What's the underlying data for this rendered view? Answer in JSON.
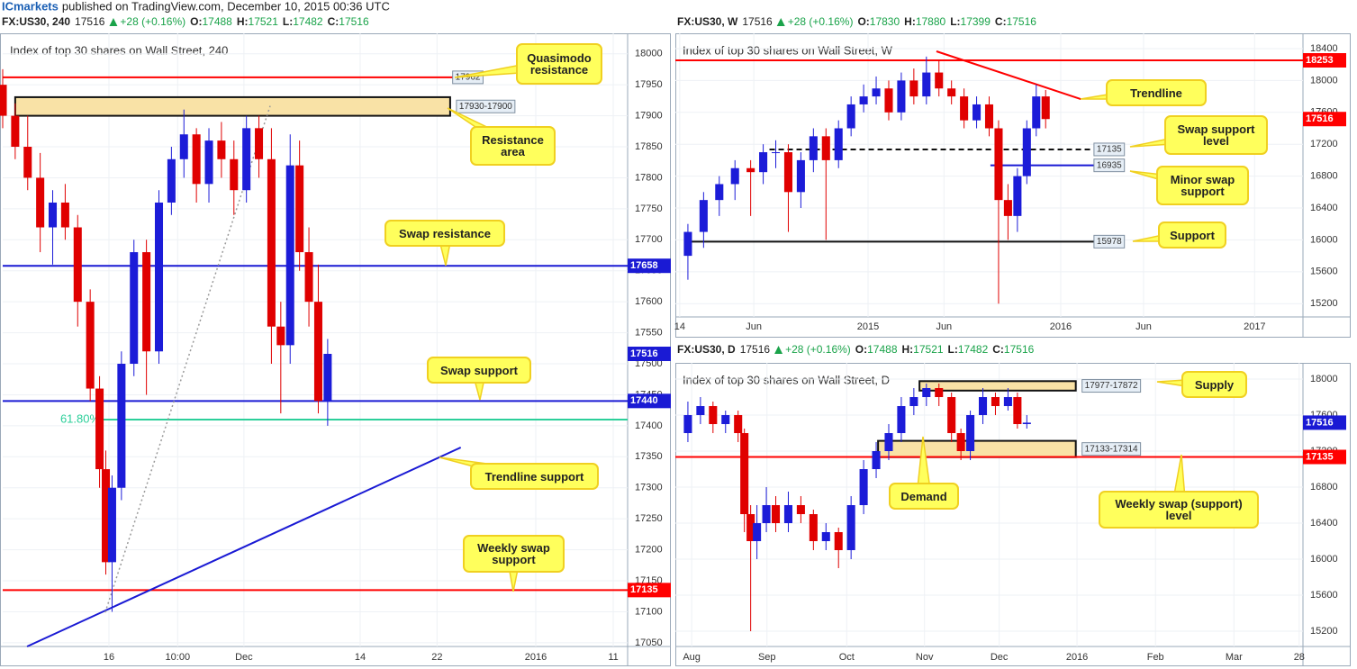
{
  "header": {
    "brand": "ICmarkets",
    "text": "published on TradingView.com, December 10, 2015 00:36 UTC"
  },
  "chart_data": [
    {
      "type": "candlestick",
      "title": "Index of top 30 shares on Wall Street, 240",
      "info": {
        "symbol": "FX:US30, 240",
        "price": 17516,
        "change": "+28 (+0.16%)",
        "labels": [
          "O:",
          "H:",
          "L:",
          "C:"
        ],
        "values": [
          17488,
          17521,
          17482,
          17516
        ]
      },
      "up_color": "#1c1cd8",
      "down_color": "#e00000",
      "grid": true,
      "xlim": [
        0,
        100
      ],
      "ylim": [
        17044,
        18033
      ],
      "yticks": [
        17050,
        17100,
        17150,
        17200,
        17250,
        17300,
        17350,
        17400,
        17450,
        17500,
        17550,
        17600,
        17650,
        17700,
        17750,
        17800,
        17850,
        17900,
        17950,
        18000
      ],
      "xticks": [
        {
          "value": 17,
          "label": "16"
        },
        {
          "value": 28,
          "label": "10:00"
        },
        {
          "value": 38.6,
          "label": "Dec"
        },
        {
          "value": 57.2,
          "label": "14"
        },
        {
          "value": 69.5,
          "label": "22"
        },
        {
          "value": 85.3,
          "label": "2016"
        },
        {
          "value": 97.7,
          "label": "11"
        }
      ],
      "x": [
        0,
        2,
        4,
        6,
        8,
        10,
        12,
        14,
        15.5,
        16.5,
        17.5,
        19,
        21,
        23,
        25,
        27,
        29,
        31,
        33,
        35,
        37,
        39,
        41,
        43,
        44.5,
        46,
        47.5,
        49,
        50.5,
        52
      ],
      "open": [
        17950,
        17900,
        17850,
        17800,
        17720,
        17760,
        17720,
        17600,
        17460,
        17330,
        17180,
        17300,
        17500,
        17680,
        17520,
        17760,
        17830,
        17870,
        17790,
        17860,
        17830,
        17780,
        17880,
        17830,
        17560,
        17530,
        17820,
        17680,
        17600,
        17440
      ],
      "high": [
        17975,
        17920,
        17900,
        17840,
        17780,
        17790,
        17740,
        17620,
        17480,
        17360,
        17320,
        17520,
        17700,
        17700,
        17780,
        17850,
        17910,
        17880,
        17880,
        17890,
        17860,
        17900,
        17900,
        17880,
        17600,
        17870,
        17860,
        17720,
        17660,
        17540
      ],
      "low": [
        17880,
        17830,
        17780,
        17680,
        17660,
        17700,
        17560,
        17440,
        17300,
        17160,
        17100,
        17280,
        17480,
        17450,
        17500,
        17740,
        17800,
        17760,
        17760,
        17800,
        17740,
        17760,
        17800,
        17500,
        17420,
        17500,
        17650,
        17560,
        17420,
        17400
      ],
      "close": [
        17900,
        17850,
        17800,
        17720,
        17760,
        17720,
        17600,
        17460,
        17330,
        17180,
        17300,
        17500,
        17680,
        17520,
        17760,
        17830,
        17870,
        17790,
        17860,
        17830,
        17780,
        17880,
        17830,
        17560,
        17530,
        17820,
        17680,
        17600,
        17440,
        17516
      ],
      "zones": [
        {
          "from": 17930,
          "to": 17900,
          "label": "17930-17900",
          "x": [
            2,
            71.6
          ]
        }
      ],
      "levels": [
        {
          "value": 17962,
          "color": "#ff0000",
          "line_style": "solid",
          "x": [
            0,
            72
          ],
          "tag": "line"
        },
        {
          "value": 17658,
          "color": "#1a1ad4",
          "line_style": "solid",
          "x": [
            0,
            100
          ],
          "tag": "axis"
        },
        {
          "value": 17440,
          "color": "#1a1ad4",
          "line_style": "solid",
          "x": [
            0,
            100
          ],
          "tag": "axis"
        },
        {
          "value": 17410,
          "label": "61.80%",
          "color": "#2ccf9a",
          "line_style": "solid",
          "x": [
            16,
            100
          ],
          "tag": "start"
        },
        {
          "value": 17135,
          "color": "#ff0000",
          "line_style": "solid",
          "x": [
            0,
            100
          ],
          "tag": "axis"
        },
        {
          "value": 17516,
          "color": "#1a1ad4",
          "line_style": "none",
          "x": [
            0,
            100
          ],
          "tag": "axis"
        }
      ],
      "trendlines": [
        {
          "x": [
            3.9,
            73.3
          ],
          "y": [
            17044,
            17365
          ],
          "color": "#1a1ad4",
          "line_style": "solid"
        },
        {
          "x": [
            16.4,
            42.8
          ],
          "y": [
            17099,
            17916
          ],
          "color": "#999999",
          "line_style": "dotted"
        }
      ],
      "annotations": [
        "Quasimodo resistance",
        "Resistance area",
        "Swap resistance",
        "Swap support",
        "Trendline support",
        "Weekly swap support"
      ]
    },
    {
      "type": "candlestick",
      "title": "Index of top 30 shares on Wall Street, W",
      "info": {
        "symbol": "FX:US30, W",
        "price": 17516,
        "change": "+28 (+0.16%)",
        "labels": [
          "O:",
          "H:",
          "L:",
          "C:"
        ],
        "values": [
          17830,
          17880,
          17399,
          17516
        ]
      },
      "up_color": "#1c1cd8",
      "down_color": "#e00000",
      "grid": true,
      "xlim": [
        0,
        100
      ],
      "ylim": [
        15033,
        18592
      ],
      "yticks": [
        15200,
        15600,
        16000,
        16400,
        16800,
        17200,
        17600,
        18000,
        18400
      ],
      "xticks": [
        {
          "value": 0.7,
          "label": "14"
        },
        {
          "value": 12.5,
          "label": "Jun"
        },
        {
          "value": 30.7,
          "label": "2015"
        },
        {
          "value": 42.8,
          "label": "Jun"
        },
        {
          "value": 61.4,
          "label": "2016"
        },
        {
          "value": 74.6,
          "label": "Jun"
        },
        {
          "value": 92.3,
          "label": "2017"
        }
      ],
      "x": [
        2,
        4.5,
        7,
        9.5,
        12,
        14,
        16,
        18,
        20,
        22,
        24,
        26,
        28,
        30,
        32,
        34,
        36,
        38,
        40,
        42,
        44,
        46,
        48,
        50,
        51.5,
        53,
        54.5,
        56,
        57.5,
        59
      ],
      "open": [
        15800,
        16100,
        16500,
        16700,
        16900,
        16850,
        17100,
        17100,
        16600,
        17000,
        17300,
        17000,
        17400,
        17700,
        17800,
        17900,
        17600,
        18000,
        17800,
        18100,
        17900,
        17800,
        17500,
        17700,
        17400,
        16500,
        16300,
        16800,
        17400,
        17800
      ],
      "high": [
        16200,
        16600,
        16800,
        17000,
        17000,
        17200,
        17250,
        17200,
        17100,
        17400,
        17400,
        17500,
        17800,
        17950,
        18050,
        18000,
        18100,
        18150,
        18300,
        18250,
        18000,
        17900,
        17800,
        17800,
        17500,
        16700,
        16900,
        17500,
        17950,
        17880
      ],
      "low": [
        15500,
        15900,
        16300,
        16500,
        16300,
        16700,
        16900,
        16100,
        16400,
        16850,
        16000,
        16900,
        17300,
        17600,
        17700,
        17500,
        17500,
        17700,
        17700,
        17800,
        17700,
        17400,
        17400,
        17300,
        15200,
        16000,
        16100,
        16700,
        17300,
        17399
      ],
      "close": [
        16100,
        16500,
        16700,
        16900,
        16850,
        17100,
        17100,
        16600,
        17000,
        17300,
        17000,
        17400,
        17700,
        17800,
        17900,
        17600,
        18000,
        17800,
        18100,
        17900,
        17800,
        17500,
        17700,
        17400,
        16500,
        16300,
        16800,
        17400,
        17800,
        17516
      ],
      "zones": [],
      "levels": [
        {
          "value": 18253,
          "color": "#ff0000",
          "line_style": "solid",
          "x": [
            0,
            100
          ],
          "tag": "axis"
        },
        {
          "value": 17135,
          "color": "#111111",
          "line_style": "dashed",
          "x": [
            15,
            66.7
          ],
          "tag": "line"
        },
        {
          "value": 16935,
          "color": "#1a1ad4",
          "line_style": "solid",
          "x": [
            50.2,
            66.7
          ],
          "tag": "line"
        },
        {
          "value": 15978,
          "color": "#111111",
          "line_style": "solid",
          "x": [
            2.1,
            66.7
          ],
          "tag": "line"
        },
        {
          "value": 17516,
          "color": "#ff0000",
          "line_style": "none",
          "x": [
            0,
            100
          ],
          "tag": "axis"
        }
      ],
      "trendlines": [
        {
          "x": [
            41.6,
            64.6
          ],
          "y": [
            18366,
            17767
          ],
          "color": "#ff0000",
          "line_style": "solid"
        }
      ],
      "annotations": [
        "Trendline",
        "Swap support level",
        "Minor swap support",
        "Support"
      ]
    },
    {
      "type": "candlestick",
      "title": "Index of top 30 shares on Wall Street, D",
      "info": {
        "symbol": "FX:US30, D",
        "price": 17516,
        "change": "+28 (+0.16%)",
        "labels": [
          "O:",
          "H:",
          "L:",
          "C:"
        ],
        "values": [
          17488,
          17521,
          17482,
          17516
        ]
      },
      "up_color": "#1c1cd8",
      "down_color": "#e00000",
      "grid": true,
      "xlim": [
        0,
        100
      ],
      "ylim": [
        15030,
        18180
      ],
      "yticks": [
        15200,
        15600,
        16000,
        16400,
        16800,
        17200,
        17600,
        18000
      ],
      "xticks": [
        {
          "value": 2.6,
          "label": "Aug"
        },
        {
          "value": 14.6,
          "label": "Sep"
        },
        {
          "value": 27.3,
          "label": "Oct"
        },
        {
          "value": 39.7,
          "label": "Nov"
        },
        {
          "value": 51.6,
          "label": "Dec"
        },
        {
          "value": 64,
          "label": "2016"
        },
        {
          "value": 76.5,
          "label": "Feb"
        },
        {
          "value": 89,
          "label": "Mar"
        },
        {
          "value": 99.4,
          "label": "28"
        }
      ],
      "x": [
        2,
        4,
        6,
        8,
        10,
        11,
        12,
        13,
        14.5,
        16,
        18,
        20,
        22,
        24,
        26,
        28,
        30,
        32,
        34,
        36,
        38,
        40,
        42,
        44,
        45.5,
        47,
        49,
        51,
        53,
        54.5,
        56
      ],
      "open": [
        17400,
        17600,
        17700,
        17500,
        17600,
        17400,
        16500,
        16200,
        16400,
        16600,
        16400,
        16600,
        16500,
        16200,
        16300,
        16100,
        16600,
        17000,
        17200,
        17400,
        17700,
        17800,
        17900,
        17800,
        17400,
        17200,
        17600,
        17800,
        17700,
        17800,
        17500
      ],
      "high": [
        17750,
        17800,
        17750,
        17650,
        17650,
        17450,
        16600,
        16600,
        16800,
        16700,
        16750,
        16700,
        16550,
        16400,
        16350,
        16700,
        17100,
        17300,
        17500,
        17800,
        17900,
        17950,
        17950,
        17850,
        17450,
        17650,
        17900,
        17850,
        17900,
        17850,
        17600
      ],
      "low": [
        17300,
        17500,
        17400,
        17400,
        17300,
        16300,
        15200,
        16000,
        16300,
        16300,
        16300,
        16400,
        16100,
        16100,
        15900,
        16000,
        16500,
        16900,
        17100,
        17300,
        17600,
        17700,
        17700,
        17300,
        17100,
        17100,
        17500,
        17600,
        17650,
        17450,
        17450
      ],
      "close": [
        17600,
        17700,
        17500,
        17600,
        17400,
        16500,
        16200,
        16400,
        16600,
        16400,
        16600,
        16500,
        16200,
        16300,
        16100,
        16600,
        17000,
        17200,
        17400,
        17700,
        17800,
        17900,
        17800,
        17400,
        17200,
        17600,
        17800,
        17700,
        17800,
        17500,
        17516
      ],
      "zones": [
        {
          "from": 17977,
          "to": 17872,
          "label": "17977-17872",
          "x": [
            38.9,
            63.8
          ]
        },
        {
          "from": 17133,
          "to": 17314,
          "label": "17133-17314",
          "x": [
            32.3,
            63.8
          ]
        }
      ],
      "levels": [
        {
          "value": 17135,
          "color": "#ff0000",
          "line_style": "solid",
          "x": [
            0,
            100
          ],
          "tag": "axis"
        },
        {
          "value": 17516,
          "color": "#1a1ad4",
          "line_style": "none",
          "x": [
            0,
            100
          ],
          "tag": "axis"
        }
      ],
      "trendlines": [],
      "annotations": [
        "Supply",
        "Demand",
        "Weekly swap (support) level"
      ]
    }
  ]
}
